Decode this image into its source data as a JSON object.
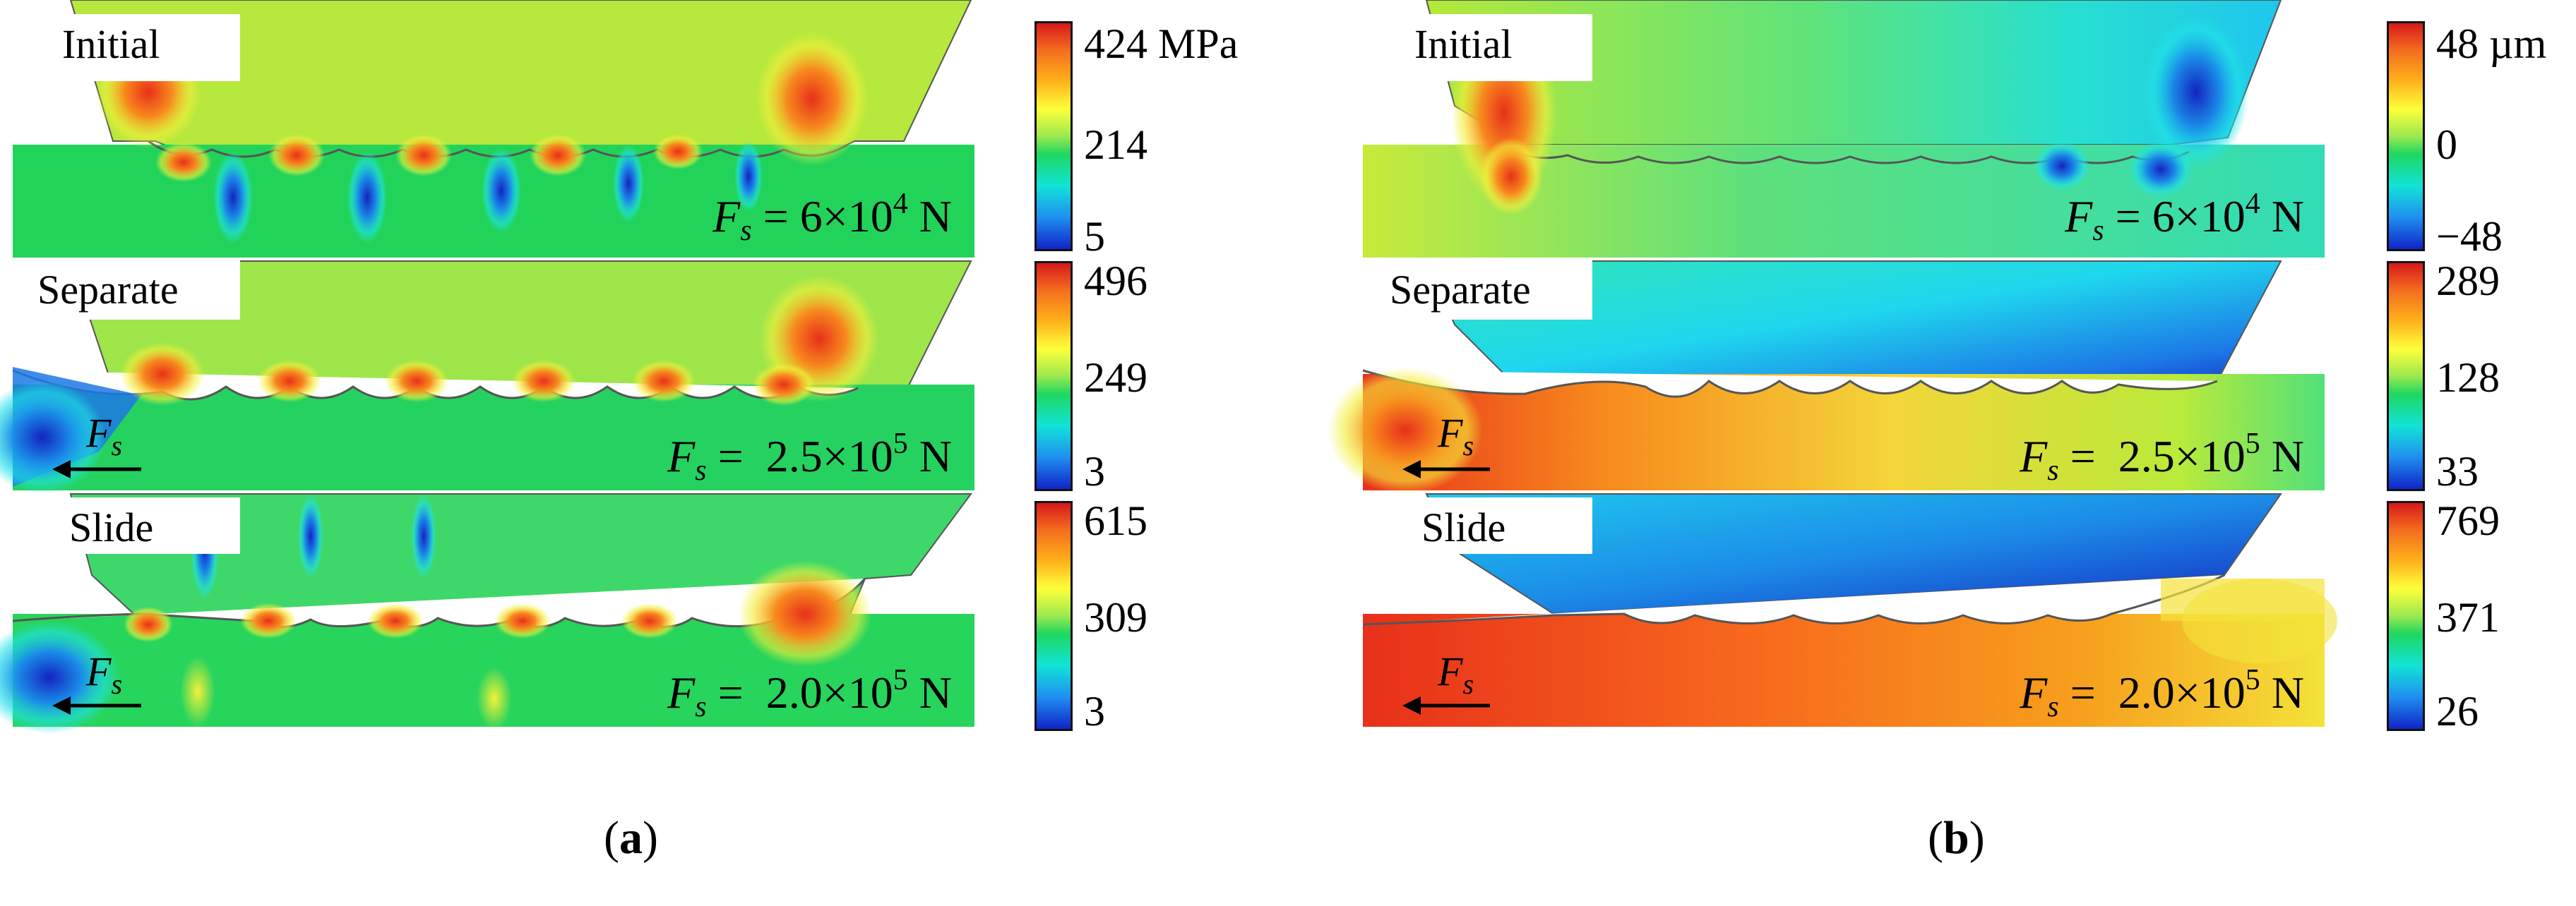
{
  "figure": {
    "panels": [
      {
        "id": "a",
        "caption_letter": "a",
        "colorbar_unit": "MPa",
        "rows": [
          {
            "stage": "Initial",
            "force_value": "6×10",
            "force_exp": "4",
            "force_unit": "N",
            "cb_max": "424",
            "cb_mid": "214",
            "cb_min": "5",
            "show_arrow": false
          },
          {
            "stage": "Separate",
            "force_value": "2.5×10",
            "force_exp": "5",
            "force_unit": "N",
            "cb_max": "496",
            "cb_mid": "249",
            "cb_min": "3",
            "show_arrow": true
          },
          {
            "stage": "Slide",
            "force_value": "2.0×10",
            "force_exp": "5",
            "force_unit": "N",
            "cb_max": "615",
            "cb_mid": "309",
            "cb_min": "3",
            "show_arrow": true
          }
        ]
      },
      {
        "id": "b",
        "caption_letter": "b",
        "colorbar_unit": "µm",
        "rows": [
          {
            "stage": "Initial",
            "force_value": "6×10",
            "force_exp": "4",
            "force_unit": "N",
            "cb_max": "48",
            "cb_mid": "0",
            "cb_min": "−48",
            "show_arrow": false
          },
          {
            "stage": "Separate",
            "force_value": "2.5×10",
            "force_exp": "5",
            "force_unit": "N",
            "cb_max": "289",
            "cb_mid": "128",
            "cb_min": "33",
            "show_arrow": true
          },
          {
            "stage": "Slide",
            "force_value": "2.0×10",
            "force_exp": "5",
            "force_unit": "N",
            "cb_max": "769",
            "cb_mid": "371",
            "cb_min": "26",
            "show_arrow": true
          }
        ]
      }
    ],
    "force_symbol": "F",
    "force_subscript": "s",
    "equals": "=",
    "caption_open": "(",
    "caption_close": ")"
  },
  "colors": {
    "green": "#21d35a",
    "yellow_green": "#a8e63a",
    "yellow": "#f4f03a",
    "orange": "#f78a1d",
    "red": "#e8301a",
    "cyan": "#1fe3e8",
    "blue": "#1a5ae0",
    "deep_blue": "#1424c0",
    "outline": "#555555"
  }
}
